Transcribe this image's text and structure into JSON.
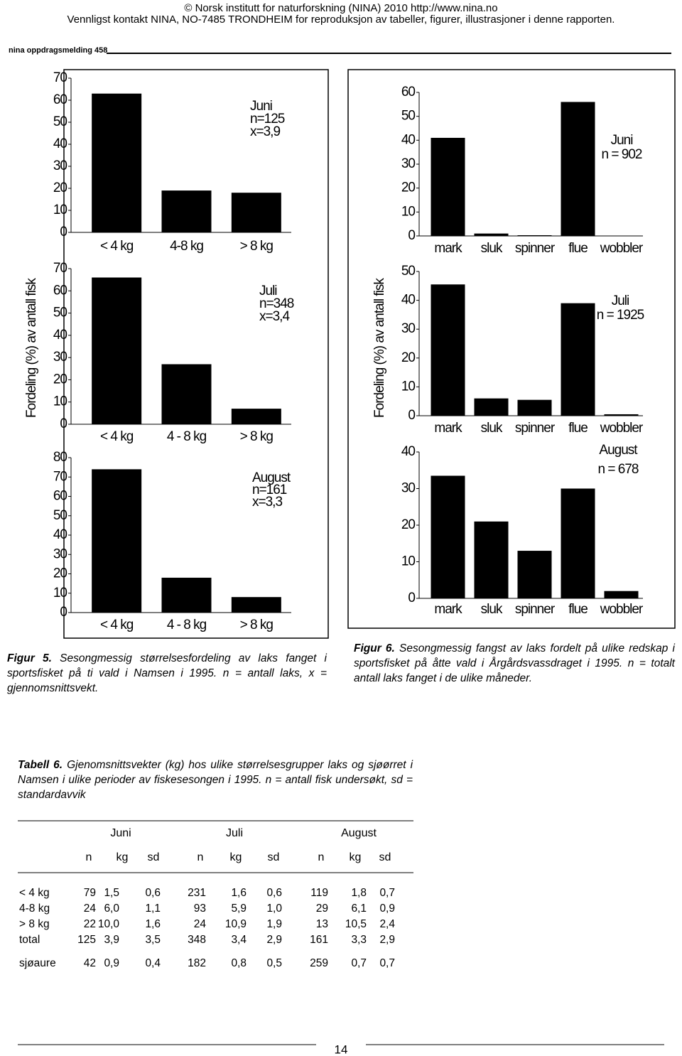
{
  "header": {
    "line1": "© Norsk institutt for naturforskning (NINA) 2010 http://www.nina.no",
    "line2": "Vennligst kontakt NINA, NO-7485 TRONDHEIM for reproduksjon av tabeller, figurer, illustrasjoner i denne rapporten.",
    "series_label": "nina oppdragsmelding 458"
  },
  "chart_data": [
    {
      "type": "bar",
      "categories": [
        "< 4 kg",
        "4-8 kg",
        "> 8 kg"
      ],
      "values": [
        63,
        19,
        18
      ],
      "ylim": [
        0,
        70
      ],
      "yticks": [
        0,
        10,
        20,
        30,
        40,
        50,
        60,
        70
      ],
      "annotations": [
        "Juni",
        "n=125",
        "x=3,9"
      ]
    },
    {
      "type": "bar",
      "categories": [
        "< 4 kg",
        "4 - 8 kg",
        "> 8 kg"
      ],
      "values": [
        66,
        27,
        7
      ],
      "ylim": [
        0,
        70
      ],
      "yticks": [
        0,
        10,
        20,
        30,
        40,
        50,
        60,
        70
      ],
      "annotations": [
        "Juli",
        "n=348",
        "x=3,4"
      ]
    },
    {
      "type": "bar",
      "categories": [
        "< 4 kg",
        "4 - 8 kg",
        "> 8 kg"
      ],
      "values": [
        74,
        18,
        8
      ],
      "ylim": [
        0,
        80
      ],
      "yticks": [
        0,
        10,
        20,
        30,
        40,
        50,
        60,
        70,
        80
      ],
      "annotations": [
        "August",
        "n=161",
        "x=3,3"
      ]
    },
    {
      "type": "bar",
      "categories": [
        "mark",
        "sluk",
        "spinner",
        "flue",
        "wobbler"
      ],
      "values": [
        41,
        1,
        0.3,
        56,
        0
      ],
      "ylim": [
        0,
        60
      ],
      "yticks": [
        0,
        10,
        20,
        30,
        40,
        50,
        60
      ],
      "annotations": [
        "Juni",
        "n = 902"
      ]
    },
    {
      "type": "bar",
      "categories": [
        "mark",
        "sluk",
        "spinner",
        "flue",
        "wobbler"
      ],
      "values": [
        45.5,
        6,
        5.5,
        39,
        0.5
      ],
      "ylim": [
        0,
        50
      ],
      "yticks": [
        0,
        10,
        20,
        30,
        40,
        50
      ],
      "annotations": [
        "Juli",
        "n = 1925"
      ]
    },
    {
      "type": "bar",
      "categories": [
        "mark",
        "sluk",
        "spinner",
        "flue",
        "wobbler"
      ],
      "values": [
        33.5,
        21,
        13,
        30,
        2
      ],
      "ylim": [
        0,
        40
      ],
      "yticks": [
        0,
        10,
        20,
        30,
        40
      ],
      "annotations": [
        "August",
        "n = 678"
      ]
    }
  ],
  "axis_titles": {
    "left": "Fordeling (%) av antall fisk",
    "right": "Fordeling (%) av antall fisk"
  },
  "captions": [
    {
      "label": "Figur 5.",
      "text": "Sesongmessig størrelsesfordeling av laks fanget i sportsfisket på ti vald i Namsen i 1995. n = antall laks, x = gjennomsnittsvekt."
    },
    {
      "label": "Figur 6.",
      "text": "Sesongmessig fangst av laks fordelt på ulike redskap i sportsfisket på åtte vald i Årgårdsvassdraget i 1995. n = totalt antall laks fanget i de ulike måneder."
    }
  ],
  "table": {
    "caption_label": "Tabell 6.",
    "caption_text": "Gjenomsnittsvekter (kg) hos ulike størrelsesgrupper laks og sjøørret i Namsen i ulike perioder av fiskesesongen i 1995. n = antall fisk undersøkt, sd = standardavvik",
    "groups": [
      "Juni",
      "Juli",
      "August"
    ],
    "columns": [
      "n",
      "kg",
      "sd",
      "n",
      "kg",
      "sd",
      "n",
      "kg",
      "sd"
    ],
    "rows": [
      [
        "< 4 kg",
        "79",
        "1,5",
        "0,6",
        "231",
        "1,6",
        "0,6",
        "119",
        "1,8",
        "0,7"
      ],
      [
        "4-8 kg",
        "24",
        "6,0",
        "1,1",
        "93",
        "5,9",
        "1,0",
        "29",
        "6,1",
        "0,9"
      ],
      [
        "> 8 kg",
        "22",
        "10,0",
        "1,6",
        "24",
        "10,9",
        "1,9",
        "13",
        "10,5",
        "2,4"
      ],
      [
        "total",
        "125",
        "3,9",
        "3,5",
        "348",
        "3,4",
        "2,9",
        "161",
        "3,3",
        "2,9"
      ],
      [
        "sjøaure",
        "42",
        "0,9",
        "0,4",
        "182",
        "0,8",
        "0,5",
        "259",
        "0,7",
        "0,7"
      ]
    ]
  },
  "page_number": "14"
}
